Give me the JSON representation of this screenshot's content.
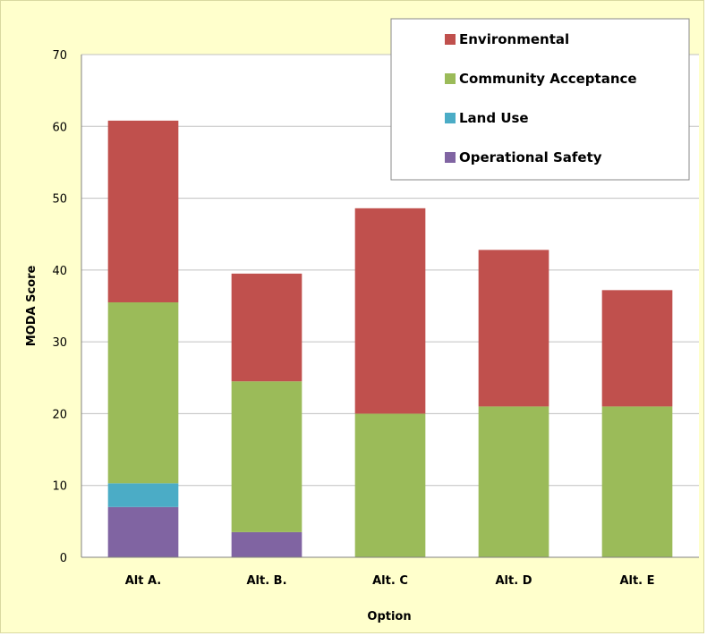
{
  "chart_data": {
    "type": "bar",
    "stacked": true,
    "title": "",
    "xlabel": "Option",
    "ylabel": "MODA Score",
    "ylim": [
      0,
      70
    ],
    "yticks": [
      0,
      10,
      20,
      30,
      40,
      50,
      60,
      70
    ],
    "grid": true,
    "legend_position": "top-right",
    "categories": [
      "Alt A.",
      "Alt. B.",
      "Alt. C",
      "Alt. D",
      "Alt. E"
    ],
    "series": [
      {
        "name": "Operational Safety",
        "color": "#8064a2",
        "values": [
          7,
          3.5,
          0,
          0,
          0
        ]
      },
      {
        "name": "Land Use",
        "color": "#4bacc6",
        "values": [
          3.3,
          0,
          0,
          0,
          0
        ]
      },
      {
        "name": "Community Acceptance",
        "color": "#9bbb59",
        "values": [
          25.2,
          21,
          20,
          21,
          21
        ]
      },
      {
        "name": "Environmental",
        "color": "#c0504d",
        "values": [
          25.3,
          15,
          28.6,
          21.8,
          16.2
        ]
      }
    ],
    "legend_order": [
      "Environmental",
      "Community Acceptance",
      "Land Use",
      "Operational Safety"
    ],
    "background_color": "#ffffcc",
    "plot_background_color": "#ffffff",
    "grid_color": "#c0c0c0"
  }
}
